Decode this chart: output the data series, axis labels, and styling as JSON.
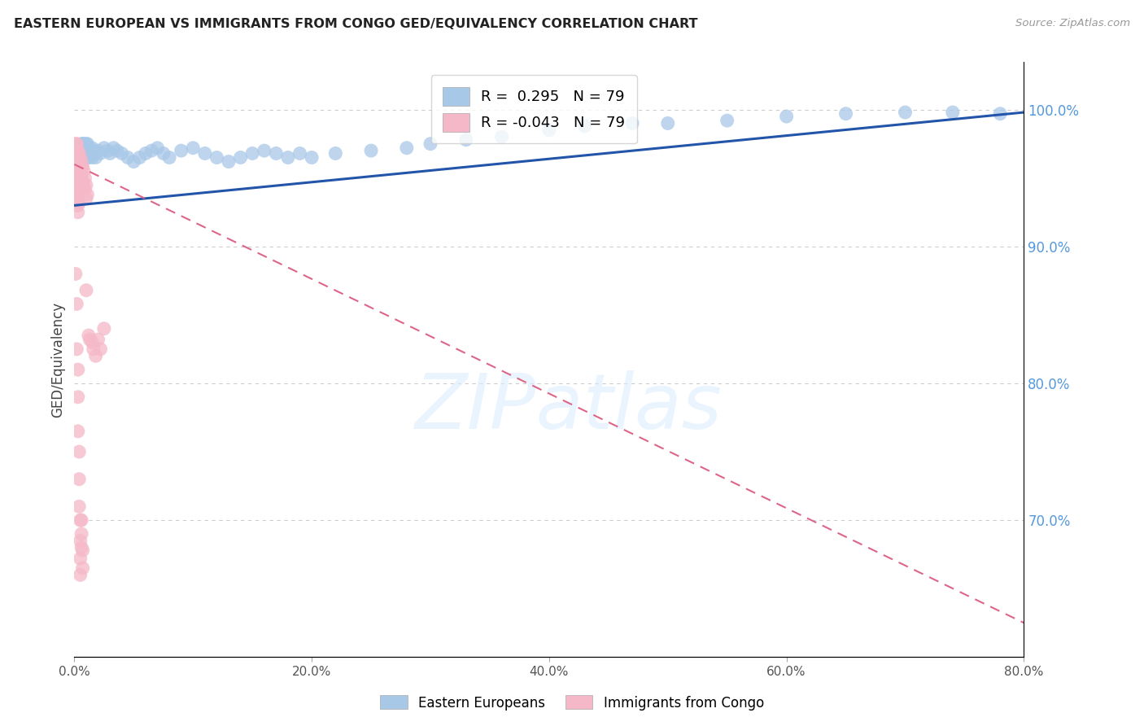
{
  "title": "EASTERN EUROPEAN VS IMMIGRANTS FROM CONGO GED/EQUIVALENCY CORRELATION CHART",
  "source": "Source: ZipAtlas.com",
  "ylabel": "GED/Equivalency",
  "xlabel_ticks": [
    "0.0%",
    "20.0%",
    "40.0%",
    "60.0%",
    "80.0%"
  ],
  "ylabel_ticks_right": [
    "70.0%",
    "80.0%",
    "90.0%",
    "100.0%"
  ],
  "xlim": [
    0.0,
    0.8
  ],
  "ylim": [
    0.6,
    1.035
  ],
  "blue_R": 0.295,
  "blue_N": 79,
  "pink_R": -0.043,
  "pink_N": 79,
  "blue_color": "#a8c8e8",
  "pink_color": "#f5b8c8",
  "blue_line_color": "#2255aa",
  "pink_line_color": "#dd6688",
  "pink_line_dash": [
    6,
    4
  ],
  "grid_color": "#cccccc",
  "right_tick_color": "#5599dd",
  "title_color": "#222222",
  "source_color": "#999999",
  "background_color": "#ffffff",
  "legend_label_blue": "Eastern Europeans",
  "legend_label_pink": "Immigrants from Congo",
  "watermark": "ZIPatlas",
  "blue_x": [
    0.001,
    0.002,
    0.003,
    0.003,
    0.004,
    0.004,
    0.005,
    0.005,
    0.005,
    0.006,
    0.006,
    0.006,
    0.007,
    0.007,
    0.007,
    0.007,
    0.008,
    0.008,
    0.008,
    0.009,
    0.009,
    0.01,
    0.01,
    0.01,
    0.011,
    0.011,
    0.012,
    0.012,
    0.013,
    0.014,
    0.015,
    0.015,
    0.016,
    0.017,
    0.018,
    0.02,
    0.022,
    0.025,
    0.028,
    0.03,
    0.033,
    0.036,
    0.04,
    0.045,
    0.05,
    0.055,
    0.06,
    0.065,
    0.07,
    0.075,
    0.08,
    0.09,
    0.1,
    0.11,
    0.12,
    0.13,
    0.14,
    0.15,
    0.16,
    0.17,
    0.18,
    0.19,
    0.2,
    0.22,
    0.25,
    0.28,
    0.3,
    0.33,
    0.36,
    0.4,
    0.43,
    0.47,
    0.5,
    0.55,
    0.6,
    0.65,
    0.7,
    0.74,
    0.78
  ],
  "blue_y": [
    0.96,
    0.965,
    0.968,
    0.958,
    0.97,
    0.965,
    0.972,
    0.968,
    0.962,
    0.975,
    0.97,
    0.965,
    0.975,
    0.97,
    0.968,
    0.962,
    0.975,
    0.97,
    0.965,
    0.972,
    0.968,
    0.975,
    0.97,
    0.965,
    0.975,
    0.968,
    0.972,
    0.965,
    0.97,
    0.968,
    0.972,
    0.965,
    0.97,
    0.968,
    0.965,
    0.97,
    0.968,
    0.972,
    0.97,
    0.968,
    0.972,
    0.97,
    0.968,
    0.965,
    0.962,
    0.965,
    0.968,
    0.97,
    0.972,
    0.968,
    0.965,
    0.97,
    0.972,
    0.968,
    0.965,
    0.962,
    0.965,
    0.968,
    0.97,
    0.968,
    0.965,
    0.968,
    0.965,
    0.968,
    0.97,
    0.972,
    0.975,
    0.978,
    0.98,
    0.985,
    0.988,
    0.99,
    0.99,
    0.992,
    0.995,
    0.997,
    0.998,
    0.998,
    0.997
  ],
  "pink_x": [
    0.001,
    0.001,
    0.001,
    0.001,
    0.001,
    0.001,
    0.001,
    0.001,
    0.001,
    0.001,
    0.002,
    0.002,
    0.002,
    0.002,
    0.002,
    0.002,
    0.002,
    0.002,
    0.002,
    0.002,
    0.003,
    0.003,
    0.003,
    0.003,
    0.003,
    0.003,
    0.003,
    0.003,
    0.003,
    0.003,
    0.004,
    0.004,
    0.004,
    0.004,
    0.004,
    0.004,
    0.005,
    0.005,
    0.005,
    0.005,
    0.006,
    0.006,
    0.006,
    0.007,
    0.007,
    0.008,
    0.008,
    0.009,
    0.009,
    0.01,
    0.01,
    0.011,
    0.012,
    0.013,
    0.015,
    0.016,
    0.018,
    0.02,
    0.022,
    0.025,
    0.001,
    0.002,
    0.002,
    0.003,
    0.003,
    0.003,
    0.004,
    0.004,
    0.004,
    0.005,
    0.005,
    0.005,
    0.005,
    0.006,
    0.006,
    0.006,
    0.007,
    0.007,
    0.01
  ],
  "pink_y": [
    0.975,
    0.972,
    0.968,
    0.965,
    0.962,
    0.958,
    0.954,
    0.95,
    0.948,
    0.945,
    0.975,
    0.97,
    0.965,
    0.96,
    0.955,
    0.95,
    0.945,
    0.94,
    0.935,
    0.93,
    0.97,
    0.965,
    0.96,
    0.955,
    0.95,
    0.945,
    0.94,
    0.935,
    0.93,
    0.925,
    0.968,
    0.962,
    0.955,
    0.948,
    0.94,
    0.932,
    0.965,
    0.958,
    0.95,
    0.942,
    0.962,
    0.955,
    0.945,
    0.958,
    0.948,
    0.955,
    0.945,
    0.95,
    0.942,
    0.945,
    0.935,
    0.938,
    0.835,
    0.832,
    0.83,
    0.825,
    0.82,
    0.832,
    0.825,
    0.84,
    0.88,
    0.858,
    0.825,
    0.81,
    0.79,
    0.765,
    0.75,
    0.73,
    0.71,
    0.7,
    0.685,
    0.672,
    0.66,
    0.7,
    0.69,
    0.68,
    0.678,
    0.665,
    0.868
  ],
  "blue_trend_x": [
    0.0,
    0.8
  ],
  "blue_trend_y": [
    0.93,
    0.998
  ],
  "pink_trend_x": [
    0.0,
    0.8
  ],
  "pink_trend_y": [
    0.96,
    0.625
  ]
}
